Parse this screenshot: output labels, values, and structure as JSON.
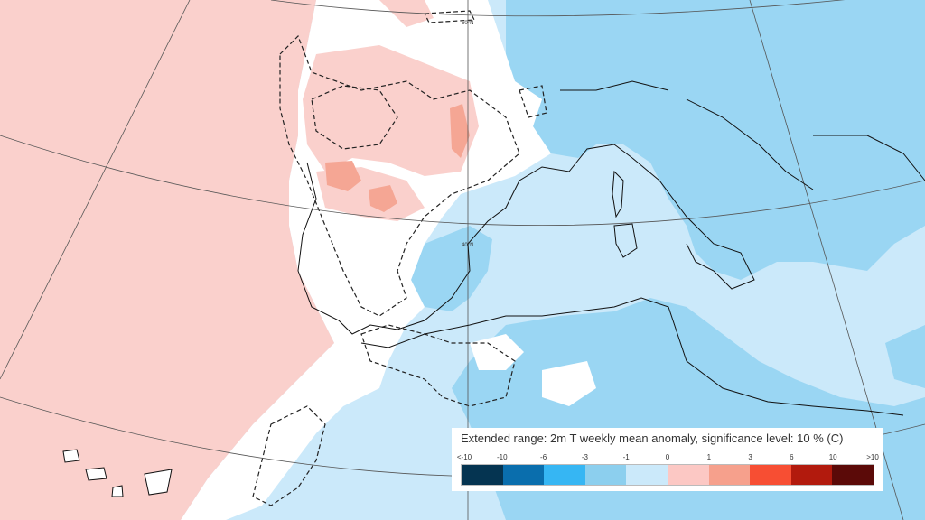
{
  "legend": {
    "title": "Extended range: 2m T weekly mean anomaly, significance level: 10 % (C)",
    "tick_labels": [
      "<-10",
      "-10",
      "-6",
      "-3",
      "-1",
      "0",
      "1",
      "3",
      "6",
      "10",
      ">10"
    ],
    "colors": [
      "#053451",
      "#0a6ead",
      "#36b6f3",
      "#8ccfee",
      "#cbe9fa",
      "#fcc8c4",
      "#f6a08c",
      "#f74e33",
      "#b21a0d",
      "#5b0a08"
    ]
  },
  "map": {
    "lat_labels": [
      "50°N",
      "40°N"
    ],
    "fill_colors": {
      "ocean_warm": "#fad0cc",
      "strong_warm": "#f5a694",
      "neutral": "#ffffff",
      "light_cool": "#cbe9fa",
      "cool": "#9ad6f3"
    }
  }
}
